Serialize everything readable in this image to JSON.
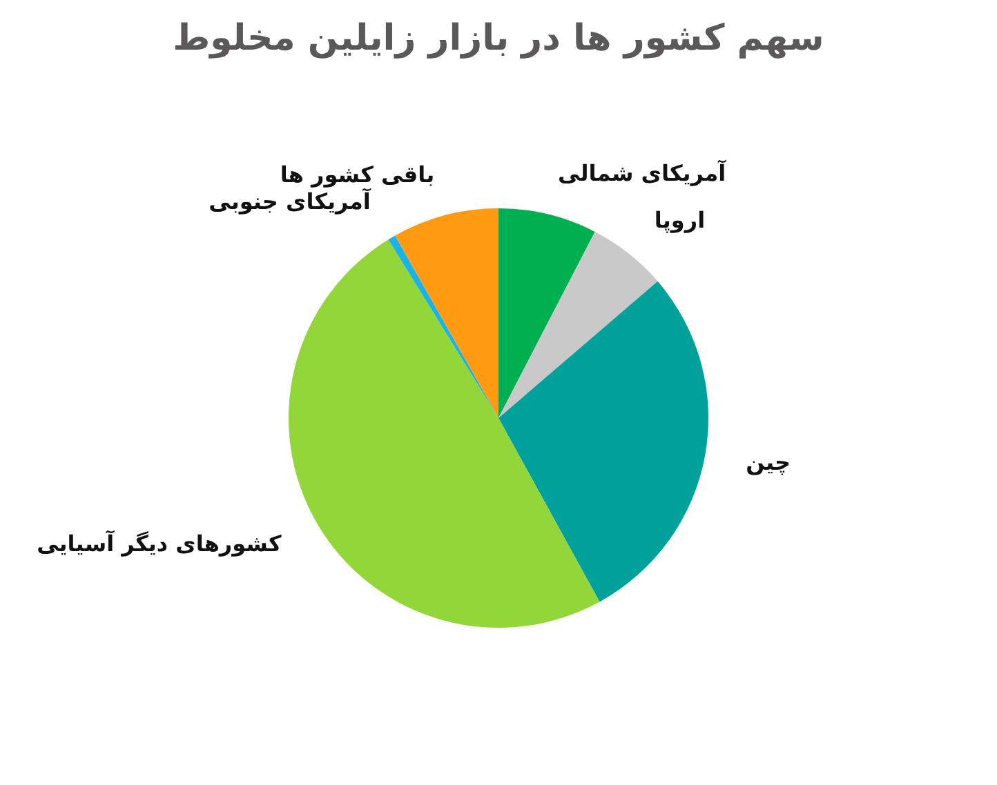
{
  "chart_data": {
    "type": "pie",
    "title": "سهم کشور ها در بازار زایلین مخلوط",
    "categories": [
      "آمریکای شمالی",
      "اروپا",
      "چین",
      "کشورهای دیگر آسیایی",
      "آمریکای جنوبی",
      "باقی کشور ها"
    ],
    "values": [
      7.6,
      6.1,
      28.3,
      49.2,
      0.6,
      8.2
    ],
    "colors": [
      "#00b050",
      "#c9c9c9",
      "#00a19a",
      "#92d63a",
      "#1ab3e8",
      "#ff9a12"
    ]
  }
}
